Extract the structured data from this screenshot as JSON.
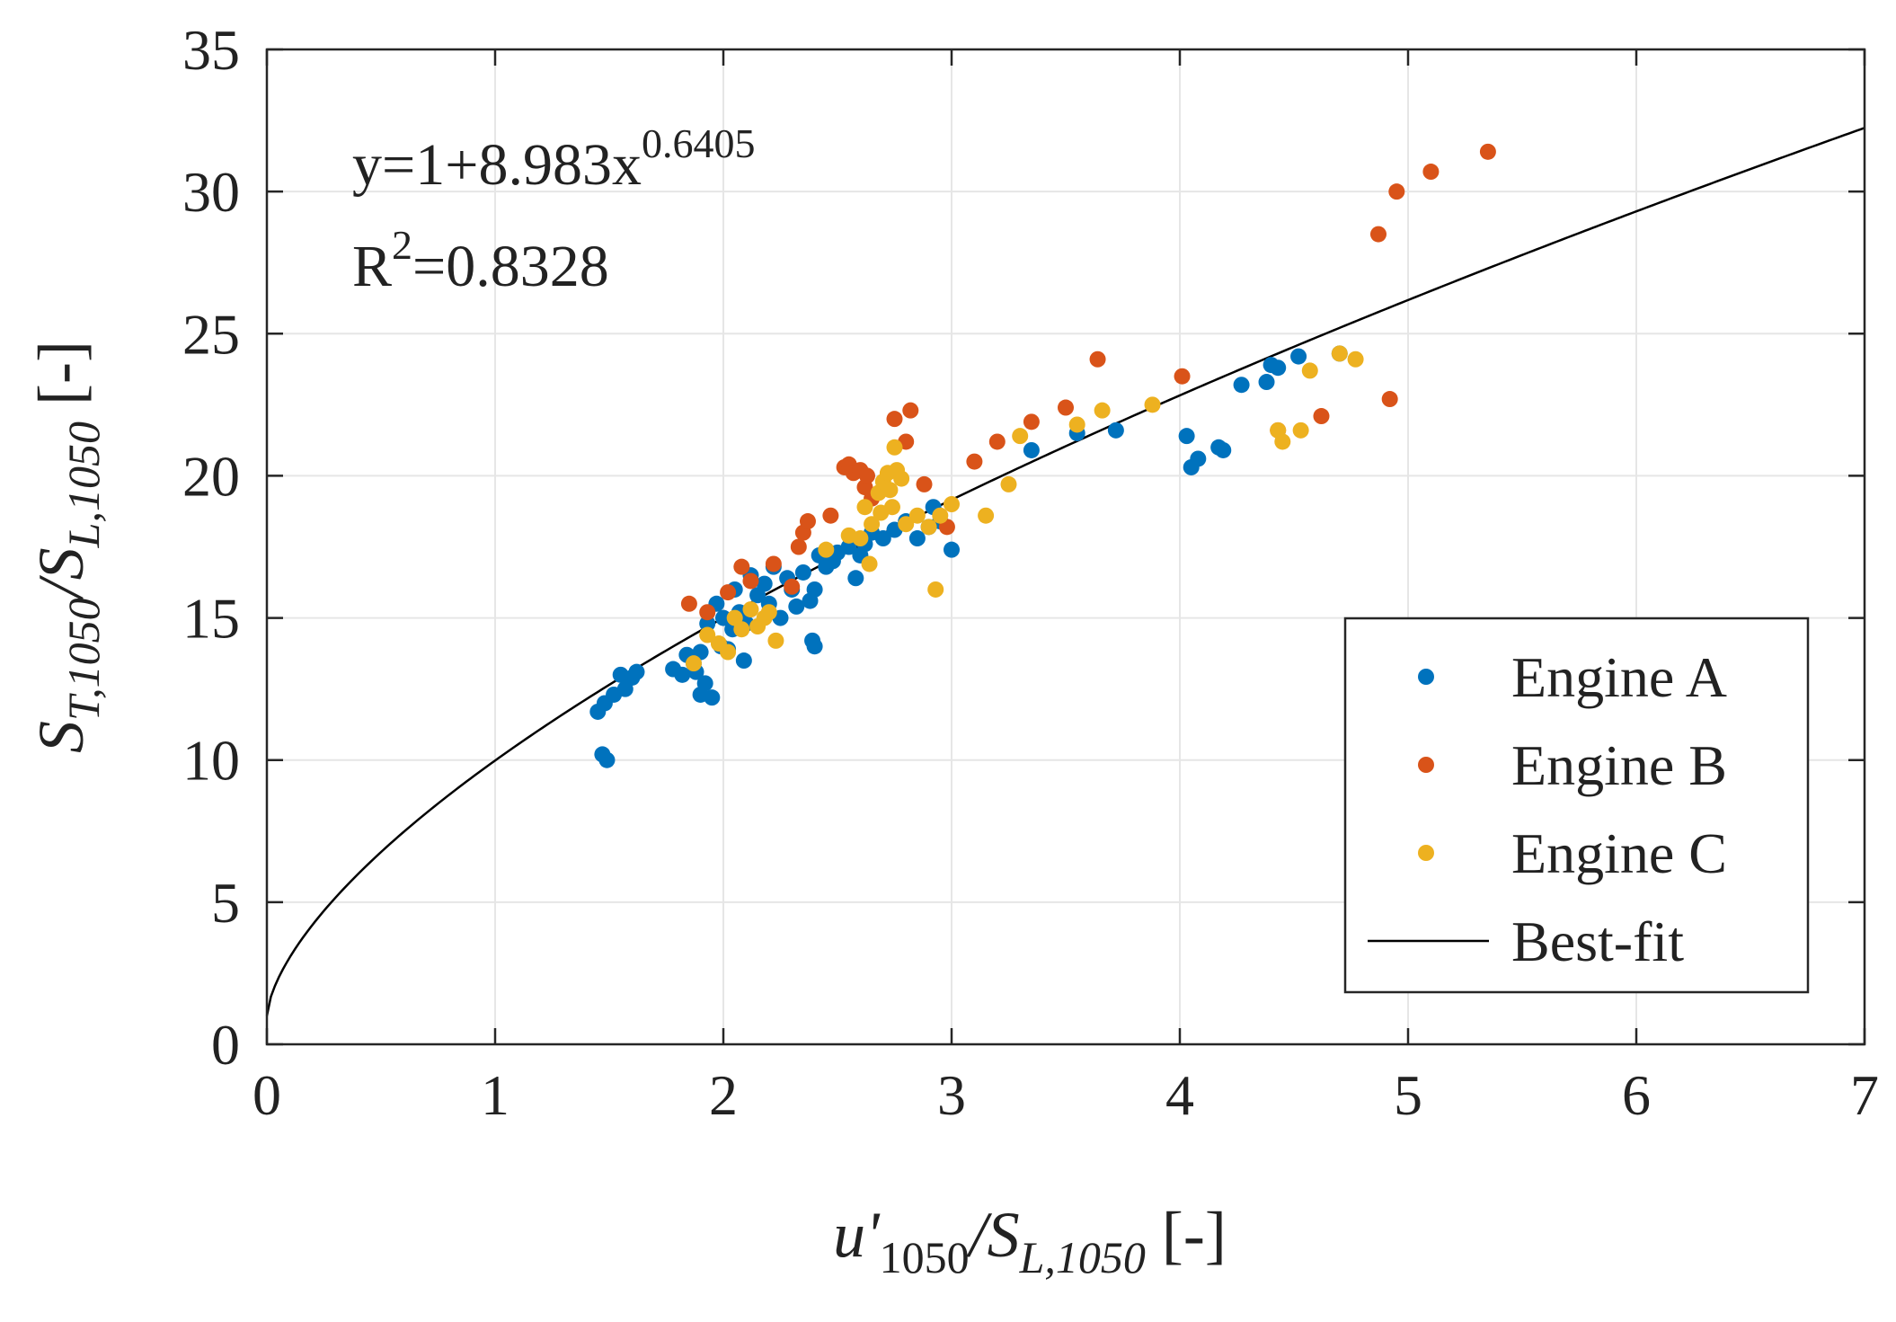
{
  "chart_data": {
    "type": "scatter",
    "xlabel": "u'1050/SL,1050 [-]",
    "xlabel_parts": {
      "main": "u'",
      "sub1": "1050",
      "slash": "/S",
      "sub2": "L,1050",
      "unit": " [-]"
    },
    "ylabel": "ST,1050/SL,1050 [-]",
    "ylabel_parts": {
      "main": "S",
      "sub1": "T,1050",
      "slash": "/S",
      "sub2": "L,1050",
      "unit": " [-]"
    },
    "xlim": [
      0,
      7
    ],
    "ylim": [
      0,
      35
    ],
    "xticks": [
      0,
      1,
      2,
      3,
      4,
      5,
      6,
      7
    ],
    "yticks": [
      0,
      5,
      10,
      15,
      20,
      25,
      30,
      35
    ],
    "grid": true,
    "legend_position": "bottom-right",
    "annotation": {
      "equation_base": "y=1+8.983x",
      "equation_exp": "0.6405",
      "r2_base": "R",
      "r2_exp": "2",
      "r2_value": "=0.8328"
    },
    "fit": {
      "name": "Best-fit",
      "a": 1,
      "b": 8.983,
      "c": 0.6405,
      "color": "#000000"
    },
    "series": [
      {
        "name": "Engine A",
        "color": "#0072BD",
        "points": [
          [
            1.45,
            11.7
          ],
          [
            1.47,
            10.2
          ],
          [
            1.48,
            12.0
          ],
          [
            1.49,
            10.0
          ],
          [
            1.52,
            12.3
          ],
          [
            1.55,
            13.0
          ],
          [
            1.57,
            12.5
          ],
          [
            1.6,
            12.9
          ],
          [
            1.62,
            13.1
          ],
          [
            1.78,
            13.2
          ],
          [
            1.82,
            13.0
          ],
          [
            1.84,
            13.7
          ],
          [
            1.87,
            13.4
          ],
          [
            1.88,
            13.1
          ],
          [
            1.9,
            13.8
          ],
          [
            1.9,
            12.3
          ],
          [
            1.92,
            12.7
          ],
          [
            1.93,
            14.8
          ],
          [
            1.95,
            12.2
          ],
          [
            1.97,
            15.5
          ],
          [
            1.99,
            14.0
          ],
          [
            2.0,
            15.0
          ],
          [
            2.02,
            13.9
          ],
          [
            2.04,
            14.6
          ],
          [
            2.05,
            16.0
          ],
          [
            2.07,
            15.2
          ],
          [
            2.09,
            13.5
          ],
          [
            2.1,
            14.8
          ],
          [
            2.12,
            16.5
          ],
          [
            2.15,
            15.8
          ],
          [
            2.18,
            16.2
          ],
          [
            2.2,
            15.5
          ],
          [
            2.22,
            16.8
          ],
          [
            2.25,
            15.0
          ],
          [
            2.28,
            16.4
          ],
          [
            2.3,
            16.0
          ],
          [
            2.32,
            15.4
          ],
          [
            2.35,
            16.6
          ],
          [
            2.38,
            15.6
          ],
          [
            2.39,
            14.2
          ],
          [
            2.4,
            14.0
          ],
          [
            2.4,
            16.0
          ],
          [
            2.42,
            17.2
          ],
          [
            2.45,
            16.8
          ],
          [
            2.48,
            17.0
          ],
          [
            2.5,
            17.3
          ],
          [
            2.55,
            17.5
          ],
          [
            2.58,
            16.4
          ],
          [
            2.6,
            17.2
          ],
          [
            2.62,
            17.6
          ],
          [
            2.65,
            18.0
          ],
          [
            2.7,
            17.8
          ],
          [
            2.75,
            18.1
          ],
          [
            2.8,
            18.4
          ],
          [
            2.85,
            17.8
          ],
          [
            2.9,
            18.2
          ],
          [
            2.92,
            18.9
          ],
          [
            2.95,
            18.4
          ],
          [
            3.0,
            17.4
          ],
          [
            3.35,
            20.9
          ],
          [
            3.55,
            21.5
          ],
          [
            3.72,
            21.6
          ],
          [
            4.03,
            21.4
          ],
          [
            4.05,
            20.3
          ],
          [
            4.08,
            20.6
          ],
          [
            4.17,
            21.0
          ],
          [
            4.19,
            20.9
          ],
          [
            4.27,
            23.2
          ],
          [
            4.38,
            23.3
          ],
          [
            4.4,
            23.9
          ],
          [
            4.43,
            23.8
          ],
          [
            4.52,
            24.2
          ],
          [
            4.7,
            24.3
          ]
        ]
      },
      {
        "name": "Engine B",
        "color": "#D95319",
        "points": [
          [
            1.85,
            15.5
          ],
          [
            1.93,
            15.2
          ],
          [
            2.02,
            15.9
          ],
          [
            2.08,
            16.8
          ],
          [
            2.12,
            16.3
          ],
          [
            2.22,
            16.9
          ],
          [
            2.3,
            16.1
          ],
          [
            2.33,
            17.5
          ],
          [
            2.35,
            18.0
          ],
          [
            2.37,
            18.4
          ],
          [
            2.47,
            18.6
          ],
          [
            2.53,
            20.3
          ],
          [
            2.55,
            20.4
          ],
          [
            2.57,
            20.1
          ],
          [
            2.6,
            20.2
          ],
          [
            2.62,
            19.6
          ],
          [
            2.63,
            20.0
          ],
          [
            2.65,
            19.2
          ],
          [
            2.75,
            22.0
          ],
          [
            2.8,
            21.2
          ],
          [
            2.82,
            22.3
          ],
          [
            2.88,
            19.7
          ],
          [
            2.98,
            18.2
          ],
          [
            3.1,
            20.5
          ],
          [
            3.2,
            21.2
          ],
          [
            3.35,
            21.9
          ],
          [
            3.5,
            22.4
          ],
          [
            3.64,
            24.1
          ],
          [
            4.01,
            23.5
          ],
          [
            4.43,
            21.6
          ],
          [
            4.62,
            22.1
          ],
          [
            4.87,
            28.5
          ],
          [
            4.92,
            22.7
          ],
          [
            4.95,
            30.0
          ],
          [
            5.1,
            30.7
          ],
          [
            5.35,
            31.4
          ]
        ]
      },
      {
        "name": "Engine C",
        "color": "#EDB120",
        "points": [
          [
            1.87,
            13.4
          ],
          [
            1.93,
            14.4
          ],
          [
            1.98,
            14.1
          ],
          [
            2.02,
            13.8
          ],
          [
            2.05,
            15.0
          ],
          [
            2.08,
            14.6
          ],
          [
            2.12,
            15.3
          ],
          [
            2.15,
            14.7
          ],
          [
            2.18,
            15.0
          ],
          [
            2.2,
            15.2
          ],
          [
            2.23,
            14.2
          ],
          [
            2.45,
            17.4
          ],
          [
            2.55,
            17.9
          ],
          [
            2.6,
            17.8
          ],
          [
            2.62,
            18.9
          ],
          [
            2.64,
            16.9
          ],
          [
            2.65,
            18.3
          ],
          [
            2.68,
            19.4
          ],
          [
            2.69,
            18.7
          ],
          [
            2.7,
            19.8
          ],
          [
            2.72,
            20.1
          ],
          [
            2.73,
            19.5
          ],
          [
            2.74,
            18.9
          ],
          [
            2.75,
            21.0
          ],
          [
            2.76,
            20.2
          ],
          [
            2.78,
            19.9
          ],
          [
            2.8,
            18.3
          ],
          [
            2.85,
            18.6
          ],
          [
            2.9,
            18.2
          ],
          [
            2.93,
            16.0
          ],
          [
            2.95,
            18.6
          ],
          [
            3.0,
            19.0
          ],
          [
            3.15,
            18.6
          ],
          [
            3.25,
            19.7
          ],
          [
            3.3,
            21.4
          ],
          [
            3.55,
            21.8
          ],
          [
            3.66,
            22.3
          ],
          [
            3.88,
            22.5
          ],
          [
            4.43,
            21.6
          ],
          [
            4.45,
            21.2
          ],
          [
            4.53,
            21.6
          ],
          [
            4.57,
            23.7
          ],
          [
            4.7,
            24.3
          ],
          [
            4.77,
            24.1
          ]
        ]
      }
    ]
  }
}
